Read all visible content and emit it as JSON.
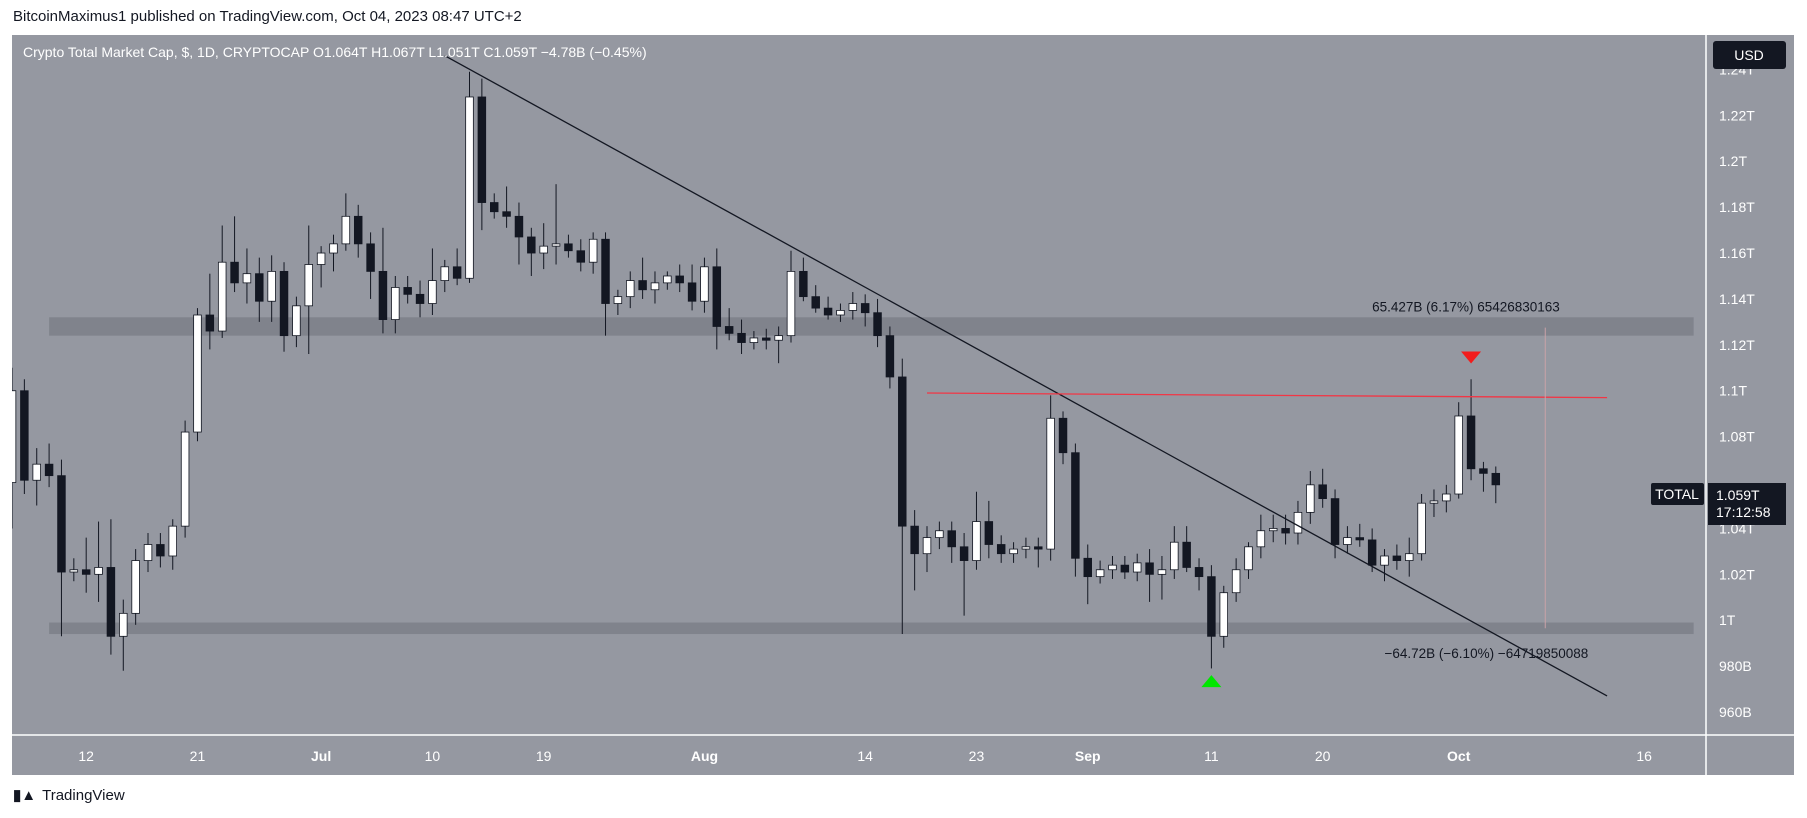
{
  "header": {
    "text": "BitcoinMaximus1 published on TradingView.com, Oct 04, 2023 08:47 UTC+2"
  },
  "footer": {
    "brand": "TradingView"
  },
  "colors": {
    "plot_bg": "#9598a1",
    "axis_bg": "#9598a1",
    "bull": "#ffffff",
    "bear": "#131722",
    "trendline": "#131722",
    "resistance": "#f23645",
    "zone": "#7b7e87",
    "marker_up": "#00e600",
    "marker_down": "#f21c1c"
  },
  "chart_data": {
    "type": "candlestick",
    "title": "Crypto Total Market Cap, $, 1D, CRYPTOCAP",
    "ohlc_label": {
      "o": "O1.064T",
      "h": "H1.067T",
      "l": "L1.051T",
      "c": "C1.059T",
      "change": "−4.78B (−0.45%)"
    },
    "currency": "USD",
    "symbol": "TOTAL",
    "last_price": "1.059T",
    "countdown": "17:12:58",
    "y_unit": "trillion USD",
    "ylim": [
      0.95,
      1.255
    ],
    "y_ticks": [
      {
        "v": 1.24,
        "label": "1.24T"
      },
      {
        "v": 1.22,
        "label": "1.22T"
      },
      {
        "v": 1.2,
        "label": "1.2T"
      },
      {
        "v": 1.18,
        "label": "1.18T"
      },
      {
        "v": 1.16,
        "label": "1.16T"
      },
      {
        "v": 1.14,
        "label": "1.14T"
      },
      {
        "v": 1.12,
        "label": "1.12T"
      },
      {
        "v": 1.1,
        "label": "1.1T"
      },
      {
        "v": 1.08,
        "label": "1.08T"
      },
      {
        "v": 1.04,
        "label": "1.04T"
      },
      {
        "v": 1.02,
        "label": "1.02T"
      },
      {
        "v": 1.0,
        "label": "1T"
      },
      {
        "v": 0.98,
        "label": "980B"
      },
      {
        "v": 0.96,
        "label": "960B"
      }
    ],
    "x_ticks": [
      {
        "date": "2023-06-12",
        "label": "12"
      },
      {
        "date": "2023-06-21",
        "label": "21"
      },
      {
        "date": "2023-07-01",
        "label": "Jul"
      },
      {
        "date": "2023-07-10",
        "label": "10"
      },
      {
        "date": "2023-07-19",
        "label": "19"
      },
      {
        "date": "2023-08-01",
        "label": "Aug"
      },
      {
        "date": "2023-08-14",
        "label": "14"
      },
      {
        "date": "2023-08-23",
        "label": "23"
      },
      {
        "date": "2023-09-01",
        "label": "Sep"
      },
      {
        "date": "2023-09-11",
        "label": "11"
      },
      {
        "date": "2023-09-20",
        "label": "20"
      },
      {
        "date": "2023-10-01",
        "label": "Oct"
      },
      {
        "date": "2023-10-16",
        "label": "16"
      }
    ],
    "x_range": [
      "2023-06-06",
      "2023-10-21"
    ],
    "candles": [
      {
        "d": "2023-06-06",
        "o": 1.06,
        "h": 1.11,
        "l": 1.04,
        "c": 1.1
      },
      {
        "d": "2023-06-07",
        "o": 1.1,
        "h": 1.105,
        "l": 1.055,
        "c": 1.061
      },
      {
        "d": "2023-06-08",
        "o": 1.061,
        "h": 1.075,
        "l": 1.05,
        "c": 1.068
      },
      {
        "d": "2023-06-09",
        "o": 1.068,
        "h": 1.077,
        "l": 1.058,
        "c": 1.063
      },
      {
        "d": "2023-06-10",
        "o": 1.063,
        "h": 1.07,
        "l": 0.993,
        "c": 1.021
      },
      {
        "d": "2023-06-11",
        "o": 1.021,
        "h": 1.027,
        "l": 1.017,
        "c": 1.022
      },
      {
        "d": "2023-06-12",
        "o": 1.022,
        "h": 1.036,
        "l": 1.012,
        "c": 1.02
      },
      {
        "d": "2023-06-13",
        "o": 1.02,
        "h": 1.043,
        "l": 1.008,
        "c": 1.023
      },
      {
        "d": "2023-06-14",
        "o": 1.023,
        "h": 1.044,
        "l": 0.985,
        "c": 0.993
      },
      {
        "d": "2023-06-15",
        "o": 0.993,
        "h": 1.009,
        "l": 0.978,
        "c": 1.003
      },
      {
        "d": "2023-06-16",
        "o": 1.003,
        "h": 1.031,
        "l": 0.998,
        "c": 1.026
      },
      {
        "d": "2023-06-17",
        "o": 1.026,
        "h": 1.038,
        "l": 1.021,
        "c": 1.033
      },
      {
        "d": "2023-06-18",
        "o": 1.033,
        "h": 1.038,
        "l": 1.023,
        "c": 1.028
      },
      {
        "d": "2023-06-19",
        "o": 1.028,
        "h": 1.044,
        "l": 1.022,
        "c": 1.041
      },
      {
        "d": "2023-06-20",
        "o": 1.041,
        "h": 1.087,
        "l": 1.036,
        "c": 1.082
      },
      {
        "d": "2023-06-21",
        "o": 1.082,
        "h": 1.136,
        "l": 1.078,
        "c": 1.133
      },
      {
        "d": "2023-06-22",
        "o": 1.133,
        "h": 1.151,
        "l": 1.118,
        "c": 1.126
      },
      {
        "d": "2023-06-23",
        "o": 1.126,
        "h": 1.172,
        "l": 1.123,
        "c": 1.156
      },
      {
        "d": "2023-06-24",
        "o": 1.156,
        "h": 1.176,
        "l": 1.143,
        "c": 1.147
      },
      {
        "d": "2023-06-25",
        "o": 1.147,
        "h": 1.162,
        "l": 1.138,
        "c": 1.151
      },
      {
        "d": "2023-06-26",
        "o": 1.151,
        "h": 1.158,
        "l": 1.13,
        "c": 1.139
      },
      {
        "d": "2023-06-27",
        "o": 1.139,
        "h": 1.159,
        "l": 1.13,
        "c": 1.152
      },
      {
        "d": "2023-06-28",
        "o": 1.152,
        "h": 1.156,
        "l": 1.117,
        "c": 1.124
      },
      {
        "d": "2023-06-29",
        "o": 1.124,
        "h": 1.141,
        "l": 1.119,
        "c": 1.137
      },
      {
        "d": "2023-06-30",
        "o": 1.137,
        "h": 1.172,
        "l": 1.116,
        "c": 1.155
      },
      {
        "d": "2023-07-01",
        "o": 1.155,
        "h": 1.163,
        "l": 1.145,
        "c": 1.16
      },
      {
        "d": "2023-07-02",
        "o": 1.16,
        "h": 1.168,
        "l": 1.152,
        "c": 1.164
      },
      {
        "d": "2023-07-03",
        "o": 1.164,
        "h": 1.186,
        "l": 1.161,
        "c": 1.176
      },
      {
        "d": "2023-07-04",
        "o": 1.176,
        "h": 1.181,
        "l": 1.158,
        "c": 1.164
      },
      {
        "d": "2023-07-05",
        "o": 1.164,
        "h": 1.169,
        "l": 1.14,
        "c": 1.152
      },
      {
        "d": "2023-07-06",
        "o": 1.152,
        "h": 1.171,
        "l": 1.125,
        "c": 1.131
      },
      {
        "d": "2023-07-07",
        "o": 1.131,
        "h": 1.15,
        "l": 1.125,
        "c": 1.145
      },
      {
        "d": "2023-07-08",
        "o": 1.145,
        "h": 1.15,
        "l": 1.138,
        "c": 1.142
      },
      {
        "d": "2023-07-09",
        "o": 1.142,
        "h": 1.148,
        "l": 1.132,
        "c": 1.138
      },
      {
        "d": "2023-07-10",
        "o": 1.138,
        "h": 1.162,
        "l": 1.133,
        "c": 1.148
      },
      {
        "d": "2023-07-11",
        "o": 1.148,
        "h": 1.157,
        "l": 1.143,
        "c": 1.154
      },
      {
        "d": "2023-07-12",
        "o": 1.154,
        "h": 1.162,
        "l": 1.146,
        "c": 1.149
      },
      {
        "d": "2023-07-13",
        "o": 1.149,
        "h": 1.239,
        "l": 1.147,
        "c": 1.228
      },
      {
        "d": "2023-07-14",
        "o": 1.228,
        "h": 1.236,
        "l": 1.17,
        "c": 1.182
      },
      {
        "d": "2023-07-15",
        "o": 1.182,
        "h": 1.186,
        "l": 1.175,
        "c": 1.178
      },
      {
        "d": "2023-07-16",
        "o": 1.178,
        "h": 1.189,
        "l": 1.171,
        "c": 1.176
      },
      {
        "d": "2023-07-17",
        "o": 1.176,
        "h": 1.182,
        "l": 1.155,
        "c": 1.167
      },
      {
        "d": "2023-07-18",
        "o": 1.167,
        "h": 1.171,
        "l": 1.15,
        "c": 1.16
      },
      {
        "d": "2023-07-19",
        "o": 1.16,
        "h": 1.173,
        "l": 1.153,
        "c": 1.163
      },
      {
        "d": "2023-07-20",
        "o": 1.163,
        "h": 1.19,
        "l": 1.155,
        "c": 1.164
      },
      {
        "d": "2023-07-21",
        "o": 1.164,
        "h": 1.168,
        "l": 1.158,
        "c": 1.161
      },
      {
        "d": "2023-07-22",
        "o": 1.161,
        "h": 1.166,
        "l": 1.152,
        "c": 1.156
      },
      {
        "d": "2023-07-23",
        "o": 1.156,
        "h": 1.169,
        "l": 1.151,
        "c": 1.166
      },
      {
        "d": "2023-07-24",
        "o": 1.166,
        "h": 1.169,
        "l": 1.124,
        "c": 1.138
      },
      {
        "d": "2023-07-25",
        "o": 1.138,
        "h": 1.144,
        "l": 1.133,
        "c": 1.141
      },
      {
        "d": "2023-07-26",
        "o": 1.141,
        "h": 1.152,
        "l": 1.136,
        "c": 1.148
      },
      {
        "d": "2023-07-27",
        "o": 1.148,
        "h": 1.158,
        "l": 1.14,
        "c": 1.144
      },
      {
        "d": "2023-07-28",
        "o": 1.144,
        "h": 1.152,
        "l": 1.138,
        "c": 1.147
      },
      {
        "d": "2023-07-29",
        "o": 1.147,
        "h": 1.152,
        "l": 1.144,
        "c": 1.15
      },
      {
        "d": "2023-07-30",
        "o": 1.15,
        "h": 1.155,
        "l": 1.143,
        "c": 1.147
      },
      {
        "d": "2023-07-31",
        "o": 1.147,
        "h": 1.155,
        "l": 1.135,
        "c": 1.139
      },
      {
        "d": "2023-08-01",
        "o": 1.139,
        "h": 1.158,
        "l": 1.134,
        "c": 1.154
      },
      {
        "d": "2023-08-02",
        "o": 1.154,
        "h": 1.162,
        "l": 1.118,
        "c": 1.128
      },
      {
        "d": "2023-08-03",
        "o": 1.128,
        "h": 1.136,
        "l": 1.122,
        "c": 1.125
      },
      {
        "d": "2023-08-04",
        "o": 1.125,
        "h": 1.131,
        "l": 1.116,
        "c": 1.121
      },
      {
        "d": "2023-08-05",
        "o": 1.121,
        "h": 1.126,
        "l": 1.118,
        "c": 1.123
      },
      {
        "d": "2023-08-06",
        "o": 1.123,
        "h": 1.127,
        "l": 1.118,
        "c": 1.122
      },
      {
        "d": "2023-08-07",
        "o": 1.122,
        "h": 1.128,
        "l": 1.112,
        "c": 1.124
      },
      {
        "d": "2023-08-08",
        "o": 1.124,
        "h": 1.161,
        "l": 1.121,
        "c": 1.152
      },
      {
        "d": "2023-08-09",
        "o": 1.152,
        "h": 1.158,
        "l": 1.139,
        "c": 1.141
      },
      {
        "d": "2023-08-10",
        "o": 1.141,
        "h": 1.146,
        "l": 1.134,
        "c": 1.136
      },
      {
        "d": "2023-08-11",
        "o": 1.136,
        "h": 1.141,
        "l": 1.131,
        "c": 1.133
      },
      {
        "d": "2023-08-12",
        "o": 1.133,
        "h": 1.138,
        "l": 1.13,
        "c": 1.135
      },
      {
        "d": "2023-08-13",
        "o": 1.135,
        "h": 1.143,
        "l": 1.131,
        "c": 1.138
      },
      {
        "d": "2023-08-14",
        "o": 1.138,
        "h": 1.142,
        "l": 1.128,
        "c": 1.134
      },
      {
        "d": "2023-08-15",
        "o": 1.134,
        "h": 1.14,
        "l": 1.119,
        "c": 1.124
      },
      {
        "d": "2023-08-16",
        "o": 1.124,
        "h": 1.128,
        "l": 1.101,
        "c": 1.106
      },
      {
        "d": "2023-08-17",
        "o": 1.106,
        "h": 1.114,
        "l": 0.994,
        "c": 1.041
      },
      {
        "d": "2023-08-18",
        "o": 1.041,
        "h": 1.048,
        "l": 1.013,
        "c": 1.029
      },
      {
        "d": "2023-08-19",
        "o": 1.029,
        "h": 1.041,
        "l": 1.021,
        "c": 1.036
      },
      {
        "d": "2023-08-20",
        "o": 1.036,
        "h": 1.043,
        "l": 1.031,
        "c": 1.039
      },
      {
        "d": "2023-08-21",
        "o": 1.039,
        "h": 1.043,
        "l": 1.025,
        "c": 1.032
      },
      {
        "d": "2023-08-22",
        "o": 1.032,
        "h": 1.038,
        "l": 1.002,
        "c": 1.026
      },
      {
        "d": "2023-08-23",
        "o": 1.026,
        "h": 1.056,
        "l": 1.022,
        "c": 1.043
      },
      {
        "d": "2023-08-24",
        "o": 1.043,
        "h": 1.052,
        "l": 1.027,
        "c": 1.033
      },
      {
        "d": "2023-08-25",
        "o": 1.033,
        "h": 1.037,
        "l": 1.025,
        "c": 1.029
      },
      {
        "d": "2023-08-26",
        "o": 1.029,
        "h": 1.034,
        "l": 1.025,
        "c": 1.031
      },
      {
        "d": "2023-08-27",
        "o": 1.031,
        "h": 1.036,
        "l": 1.027,
        "c": 1.032
      },
      {
        "d": "2023-08-28",
        "o": 1.032,
        "h": 1.036,
        "l": 1.023,
        "c": 1.031
      },
      {
        "d": "2023-08-29",
        "o": 1.031,
        "h": 1.098,
        "l": 1.026,
        "c": 1.088
      },
      {
        "d": "2023-08-30",
        "o": 1.088,
        "h": 1.091,
        "l": 1.068,
        "c": 1.073
      },
      {
        "d": "2023-08-31",
        "o": 1.073,
        "h": 1.077,
        "l": 1.019,
        "c": 1.027
      },
      {
        "d": "2023-09-01",
        "o": 1.027,
        "h": 1.033,
        "l": 1.007,
        "c": 1.019
      },
      {
        "d": "2023-09-02",
        "o": 1.019,
        "h": 1.026,
        "l": 1.016,
        "c": 1.022
      },
      {
        "d": "2023-09-03",
        "o": 1.022,
        "h": 1.028,
        "l": 1.018,
        "c": 1.024
      },
      {
        "d": "2023-09-04",
        "o": 1.024,
        "h": 1.028,
        "l": 1.018,
        "c": 1.021
      },
      {
        "d": "2023-09-05",
        "o": 1.021,
        "h": 1.029,
        "l": 1.017,
        "c": 1.025
      },
      {
        "d": "2023-09-06",
        "o": 1.025,
        "h": 1.031,
        "l": 1.008,
        "c": 1.02
      },
      {
        "d": "2023-09-07",
        "o": 1.02,
        "h": 1.028,
        "l": 1.009,
        "c": 1.022
      },
      {
        "d": "2023-09-08",
        "o": 1.022,
        "h": 1.041,
        "l": 1.018,
        "c": 1.034
      },
      {
        "d": "2023-09-09",
        "o": 1.034,
        "h": 1.041,
        "l": 1.021,
        "c": 1.023
      },
      {
        "d": "2023-09-10",
        "o": 1.023,
        "h": 1.027,
        "l": 1.013,
        "c": 1.019
      },
      {
        "d": "2023-09-11",
        "o": 1.019,
        "h": 1.024,
        "l": 0.979,
        "c": 0.993
      },
      {
        "d": "2023-09-12",
        "o": 0.993,
        "h": 1.015,
        "l": 0.988,
        "c": 1.012
      },
      {
        "d": "2023-09-13",
        "o": 1.012,
        "h": 1.027,
        "l": 1.008,
        "c": 1.022
      },
      {
        "d": "2023-09-14",
        "o": 1.022,
        "h": 1.034,
        "l": 1.018,
        "c": 1.032
      },
      {
        "d": "2023-09-15",
        "o": 1.032,
        "h": 1.046,
        "l": 1.027,
        "c": 1.039
      },
      {
        "d": "2023-09-16",
        "o": 1.039,
        "h": 1.046,
        "l": 1.034,
        "c": 1.04
      },
      {
        "d": "2023-09-17",
        "o": 1.04,
        "h": 1.046,
        "l": 1.033,
        "c": 1.038
      },
      {
        "d": "2023-09-18",
        "o": 1.038,
        "h": 1.052,
        "l": 1.033,
        "c": 1.047
      },
      {
        "d": "2023-09-19",
        "o": 1.047,
        "h": 1.065,
        "l": 1.042,
        "c": 1.059
      },
      {
        "d": "2023-09-20",
        "o": 1.059,
        "h": 1.066,
        "l": 1.049,
        "c": 1.053
      },
      {
        "d": "2023-09-21",
        "o": 1.053,
        "h": 1.057,
        "l": 1.027,
        "c": 1.033
      },
      {
        "d": "2023-09-22",
        "o": 1.033,
        "h": 1.041,
        "l": 1.029,
        "c": 1.036
      },
      {
        "d": "2023-09-23",
        "o": 1.036,
        "h": 1.042,
        "l": 1.032,
        "c": 1.035
      },
      {
        "d": "2023-09-24",
        "o": 1.035,
        "h": 1.04,
        "l": 1.021,
        "c": 1.024
      },
      {
        "d": "2023-09-25",
        "o": 1.024,
        "h": 1.031,
        "l": 1.017,
        "c": 1.028
      },
      {
        "d": "2023-09-26",
        "o": 1.028,
        "h": 1.033,
        "l": 1.022,
        "c": 1.026
      },
      {
        "d": "2023-09-27",
        "o": 1.026,
        "h": 1.036,
        "l": 1.019,
        "c": 1.029
      },
      {
        "d": "2023-09-28",
        "o": 1.029,
        "h": 1.055,
        "l": 1.026,
        "c": 1.051
      },
      {
        "d": "2023-09-29",
        "o": 1.051,
        "h": 1.057,
        "l": 1.045,
        "c": 1.052
      },
      {
        "d": "2023-09-30",
        "o": 1.052,
        "h": 1.059,
        "l": 1.047,
        "c": 1.055
      },
      {
        "d": "2023-10-01",
        "o": 1.055,
        "h": 1.095,
        "l": 1.053,
        "c": 1.089
      },
      {
        "d": "2023-10-02",
        "o": 1.089,
        "h": 1.105,
        "l": 1.061,
        "c": 1.066
      },
      {
        "d": "2023-10-03",
        "o": 1.066,
        "h": 1.069,
        "l": 1.056,
        "c": 1.064
      },
      {
        "d": "2023-10-04",
        "o": 1.064,
        "h": 1.067,
        "l": 1.051,
        "c": 1.059
      }
    ],
    "zones": [
      {
        "from": 1.124,
        "to": 1.132,
        "start": "2023-06-09",
        "end": "2023-10-20"
      },
      {
        "from": 0.994,
        "to": 0.999,
        "start": "2023-06-09",
        "end": "2023-10-20"
      }
    ],
    "lines": [
      {
        "name": "descending-trendline",
        "from": {
          "d": "2023-07-11",
          "v": 1.246
        },
        "to": {
          "d": "2023-10-13",
          "v": 0.967
        }
      },
      {
        "name": "resistance-line",
        "from": {
          "d": "2023-08-19",
          "v": 1.099
        },
        "to": {
          "d": "2023-10-13",
          "v": 1.097
        }
      }
    ],
    "range_line": {
      "d": "2023-10-08",
      "from": 1.1275,
      "to": 0.9965
    },
    "annotations": [
      {
        "text": "65.427B (6.17%) 65426830163",
        "d": "2023-09-24",
        "v": 1.1345,
        "anchor": "start"
      },
      {
        "text": "−64.72B (−6.10%) −64719850088",
        "d": "2023-09-25",
        "v": 0.9835,
        "anchor": "start"
      }
    ],
    "markers": [
      {
        "d": "2023-09-11",
        "v": 0.9735,
        "dir": "up"
      },
      {
        "d": "2023-10-02",
        "v": 1.1145,
        "dir": "down"
      }
    ]
  }
}
